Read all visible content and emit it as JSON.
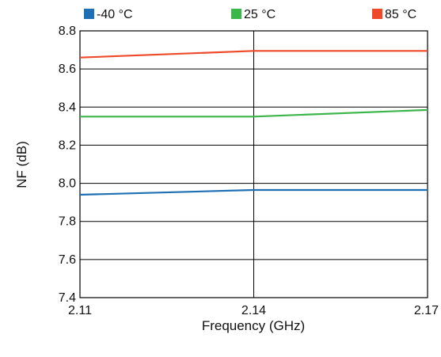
{
  "chart_data": {
    "type": "line",
    "title": "",
    "xlabel": "Frequency (GHz)",
    "ylabel": "NF (dB)",
    "x": [
      2.11,
      2.14,
      2.17
    ],
    "x_tick_labels": [
      "2.11",
      "2.14",
      "2.17"
    ],
    "xlim": [
      2.11,
      2.17
    ],
    "ylim": [
      7.4,
      8.8
    ],
    "y_ticks": [
      7.4,
      7.6,
      7.8,
      8.0,
      8.2,
      8.4,
      8.6,
      8.8
    ],
    "y_tick_labels": [
      "7.4",
      "7.6",
      "7.8",
      "8.0",
      "8.2",
      "8.4",
      "8.6",
      "8.8"
    ],
    "grid": true,
    "legend_position": "top",
    "series": [
      {
        "name": "-40 °C",
        "color": "#1f6fb4",
        "values": [
          7.94,
          7.965,
          7.965
        ]
      },
      {
        "name": "25 °C",
        "color": "#3cb54a",
        "values": [
          8.35,
          8.35,
          8.385
        ]
      },
      {
        "name": "85 °C",
        "color": "#ee4a2a",
        "values": [
          8.66,
          8.695,
          8.695
        ]
      }
    ]
  }
}
